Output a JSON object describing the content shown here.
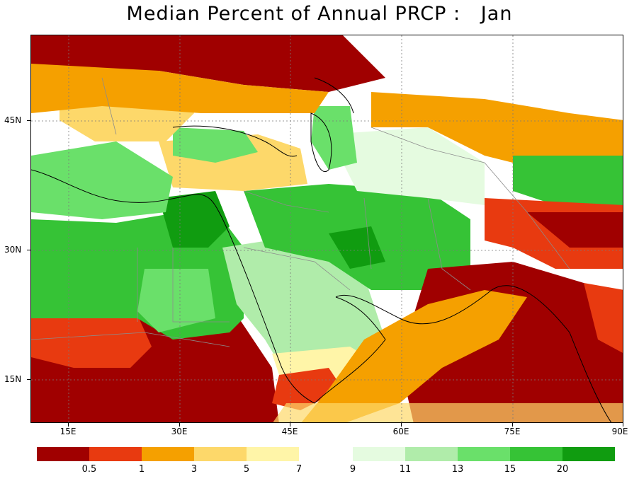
{
  "title": "Median Percent of Annual PRCP :   Jan",
  "axes": {
    "lat_labels": [
      "45N",
      "30N",
      "15N"
    ],
    "lon_labels": [
      "15E",
      "30E",
      "45E",
      "60E",
      "75E",
      "90E"
    ]
  },
  "legend": {
    "colors": [
      "#a00000",
      "#e83a10",
      "#f5a000",
      "#fdd86a",
      "#fff5a8",
      "#e5fbe0",
      "#b0ecaa",
      "#6ae06a",
      "#36c336",
      "#109c10"
    ],
    "labels": [
      "0.5",
      "1",
      "3",
      "5",
      "7",
      "9",
      "11",
      "13",
      "15",
      "20"
    ]
  },
  "palette": {
    "ocean": "#ffffff",
    "no_data": "#ffffff",
    "borders": "#8c8c8c",
    "coast": "#000000"
  }
}
